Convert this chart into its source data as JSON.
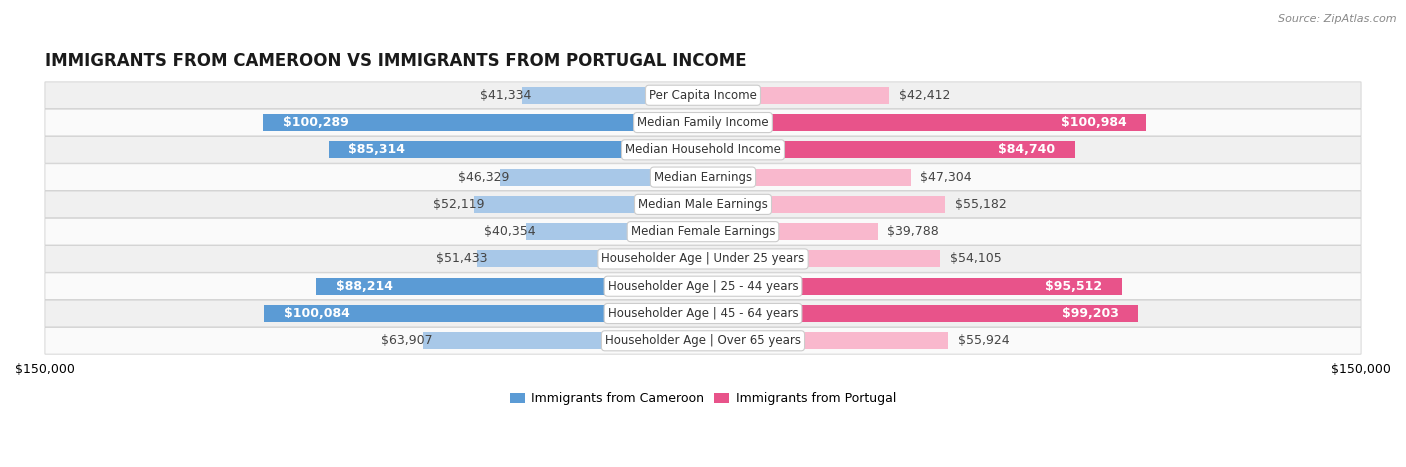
{
  "title": "IMMIGRANTS FROM CAMEROON VS IMMIGRANTS FROM PORTUGAL INCOME",
  "source": "Source: ZipAtlas.com",
  "categories": [
    "Per Capita Income",
    "Median Family Income",
    "Median Household Income",
    "Median Earnings",
    "Median Male Earnings",
    "Median Female Earnings",
    "Householder Age | Under 25 years",
    "Householder Age | 25 - 44 years",
    "Householder Age | 45 - 64 years",
    "Householder Age | Over 65 years"
  ],
  "cameroon_values": [
    41334,
    100289,
    85314,
    46329,
    52119,
    40354,
    51433,
    88214,
    100084,
    63907
  ],
  "portugal_values": [
    42412,
    100984,
    84740,
    47304,
    55182,
    39788,
    54105,
    95512,
    99203,
    55924
  ],
  "cameroon_labels": [
    "$41,334",
    "$100,289",
    "$85,314",
    "$46,329",
    "$52,119",
    "$40,354",
    "$51,433",
    "$88,214",
    "$100,084",
    "$63,907"
  ],
  "portugal_labels": [
    "$42,412",
    "$100,984",
    "$84,740",
    "$47,304",
    "$55,182",
    "$39,788",
    "$54,105",
    "$95,512",
    "$99,203",
    "$55,924"
  ],
  "cameroon_color_light": "#a8c8e8",
  "cameroon_color_dark": "#5b9bd5",
  "portugal_color_light": "#f9b8cd",
  "portugal_color_dark": "#e8538a",
  "inside_label_threshold": 65000,
  "max_value": 150000,
  "bar_height": 0.62,
  "background_color": "#ffffff",
  "row_bg_even": "#f0f0f0",
  "row_bg_odd": "#fafafa",
  "legend_cameroon": "Immigrants from Cameroon",
  "legend_portugal": "Immigrants from Portugal",
  "label_fontsize": 9,
  "title_fontsize": 12,
  "category_fontsize": 8.5,
  "source_fontsize": 8
}
